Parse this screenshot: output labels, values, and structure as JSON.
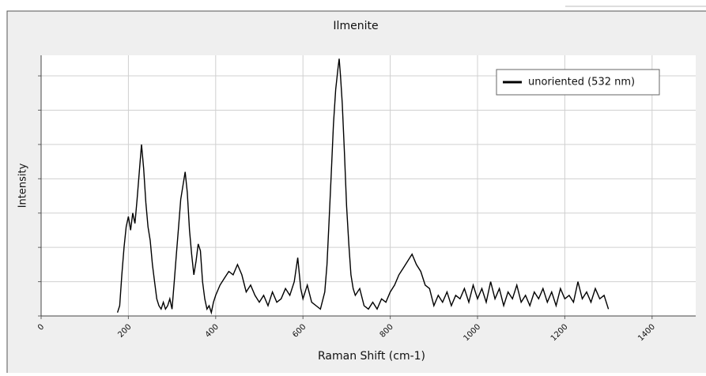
{
  "chart_data": {
    "type": "line",
    "title": "Ilmenite",
    "xlabel": "Raman Shift (cm-1)",
    "ylabel": "Intensity",
    "xlim": [
      0,
      1500
    ],
    "xticks": [
      0,
      200,
      400,
      600,
      800,
      1000,
      1200,
      1400
    ],
    "ylim": [
      0,
      7.6
    ],
    "yticks": [
      0,
      1,
      2,
      3,
      4,
      5,
      6,
      7
    ],
    "grid": true,
    "legend": "upper right",
    "x": [
      175,
      180,
      185,
      190,
      195,
      200,
      205,
      210,
      215,
      220,
      225,
      230,
      235,
      240,
      245,
      250,
      255,
      260,
      265,
      270,
      275,
      280,
      285,
      290,
      295,
      300,
      305,
      310,
      315,
      320,
      325,
      330,
      335,
      340,
      345,
      350,
      355,
      360,
      365,
      370,
      375,
      380,
      385,
      390,
      395,
      400,
      410,
      420,
      430,
      440,
      450,
      460,
      470,
      480,
      490,
      500,
      510,
      520,
      530,
      540,
      550,
      560,
      570,
      580,
      588,
      595,
      600,
      610,
      620,
      630,
      640,
      650,
      655,
      660,
      665,
      670,
      675,
      680,
      683,
      686,
      690,
      695,
      700,
      705,
      710,
      715,
      720,
      730,
      740,
      750,
      760,
      770,
      780,
      790,
      800,
      810,
      820,
      830,
      840,
      850,
      860,
      870,
      880,
      890,
      900,
      910,
      920,
      930,
      940,
      950,
      960,
      970,
      980,
      990,
      1000,
      1010,
      1020,
      1030,
      1040,
      1050,
      1060,
      1070,
      1080,
      1090,
      1100,
      1110,
      1120,
      1130,
      1140,
      1150,
      1160,
      1170,
      1180,
      1190,
      1200,
      1210,
      1220,
      1230,
      1240,
      1250,
      1260,
      1270,
      1280,
      1290,
      1300
    ],
    "series": [
      {
        "name": "unoriented (532 nm)",
        "color": "#000000",
        "values": [
          0.1,
          0.3,
          1.2,
          2.0,
          2.6,
          2.9,
          2.5,
          3.0,
          2.7,
          3.4,
          4.2,
          5.0,
          4.3,
          3.3,
          2.6,
          2.2,
          1.5,
          1.0,
          0.5,
          0.3,
          0.2,
          0.4,
          0.2,
          0.3,
          0.5,
          0.2,
          1.0,
          1.8,
          2.6,
          3.4,
          3.8,
          4.2,
          3.6,
          2.5,
          1.8,
          1.2,
          1.6,
          2.1,
          1.9,
          1.0,
          0.5,
          0.2,
          0.3,
          0.1,
          0.4,
          0.6,
          0.9,
          1.1,
          1.3,
          1.2,
          1.5,
          1.2,
          0.7,
          0.9,
          0.6,
          0.4,
          0.6,
          0.3,
          0.7,
          0.4,
          0.5,
          0.8,
          0.6,
          1.0,
          1.7,
          0.8,
          0.5,
          0.9,
          0.4,
          0.3,
          0.2,
          0.7,
          1.5,
          2.8,
          4.2,
          5.6,
          6.6,
          7.2,
          7.5,
          7.0,
          6.2,
          4.8,
          3.2,
          2.1,
          1.2,
          0.8,
          0.6,
          0.8,
          0.3,
          0.2,
          0.4,
          0.2,
          0.5,
          0.4,
          0.7,
          0.9,
          1.2,
          1.4,
          1.6,
          1.8,
          1.5,
          1.3,
          0.9,
          0.8,
          0.3,
          0.6,
          0.4,
          0.7,
          0.3,
          0.6,
          0.5,
          0.8,
          0.4,
          0.9,
          0.5,
          0.8,
          0.4,
          1.0,
          0.5,
          0.8,
          0.3,
          0.7,
          0.5,
          0.9,
          0.4,
          0.6,
          0.3,
          0.7,
          0.5,
          0.8,
          0.4,
          0.7,
          0.3,
          0.8,
          0.5,
          0.6,
          0.4,
          1.0,
          0.5,
          0.7,
          0.4,
          0.8,
          0.5,
          0.6,
          0.2
        ]
      }
    ]
  }
}
